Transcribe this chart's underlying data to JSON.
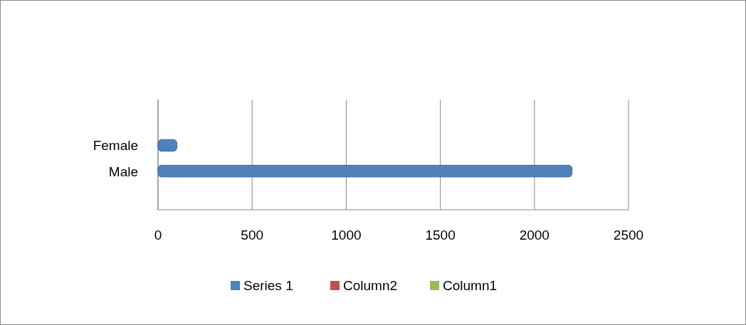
{
  "chart_data": {
    "type": "bar",
    "orientation": "horizontal",
    "categories": [
      "Female",
      "Male"
    ],
    "series": [
      {
        "name": "Series 1",
        "color": "#4f81bd",
        "values": [
          100,
          2200
        ]
      },
      {
        "name": "Column2",
        "color": "#c0504d",
        "values": [
          null,
          null
        ]
      },
      {
        "name": "Column1",
        "color": "#9bbb59",
        "values": [
          null,
          null
        ]
      }
    ],
    "xlim": [
      0,
      2500
    ],
    "xticks": [
      0,
      500,
      1000,
      1500,
      2000,
      2500
    ],
    "grid": "x",
    "legend": "bottom"
  }
}
